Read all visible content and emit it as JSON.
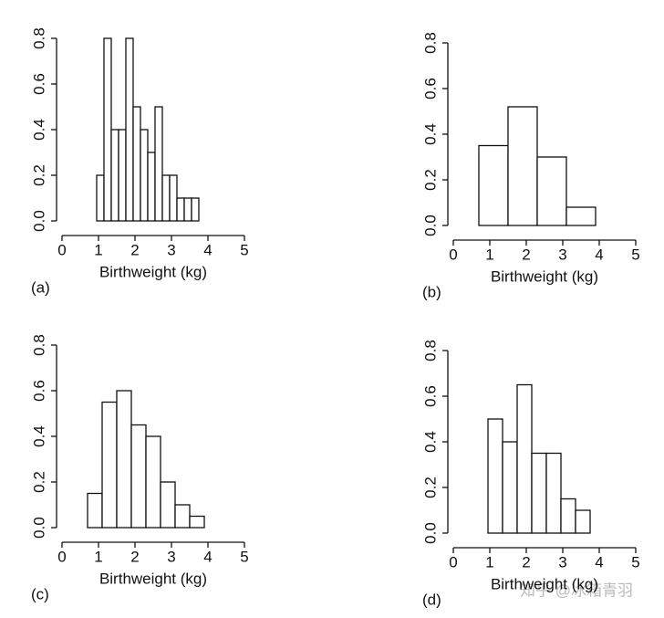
{
  "chart_data": [
    {
      "type": "histogram",
      "label": "(a)",
      "xlabel": "Birthweight (kg)",
      "bins": [
        0.95,
        1.15,
        1.35,
        1.55,
        1.75,
        1.95,
        2.15,
        2.35,
        2.55,
        2.75,
        2.95,
        3.15,
        3.35,
        3.55,
        3.75
      ],
      "values": [
        0.2,
        0.8,
        0.4,
        0.4,
        0.8,
        0.5,
        0.4,
        0.3,
        0.5,
        0.2,
        0.2,
        0.1,
        0.1,
        0.1
      ],
      "color": "#ffffff",
      "xlim": [
        0,
        5
      ],
      "xticks": [
        0,
        1,
        2,
        3,
        4,
        5
      ],
      "ylim": [
        0,
        0.8
      ],
      "yticks": [
        {
          "value": 0,
          "label": "0.0"
        },
        0.2,
        0.4,
        0.6,
        0.8
      ]
    },
    {
      "type": "histogram",
      "label": "(b)",
      "xlabel": "Birthweight (kg)",
      "bins": [
        0.7,
        1.5,
        2.3,
        3.1,
        3.9
      ],
      "values": [
        0.35,
        0.52,
        0.3,
        0.08
      ],
      "color": "#ffffff",
      "xlim": [
        0,
        5
      ],
      "xticks": [
        0,
        1,
        2,
        3,
        4,
        5
      ],
      "ylim": [
        0,
        0.8
      ],
      "yticks": [
        {
          "value": 0,
          "label": "0.0"
        },
        0.2,
        0.4,
        0.6,
        0.8
      ]
    },
    {
      "type": "histogram",
      "label": "(c)",
      "xlabel": "Birthweight (kg)",
      "bins": [
        0.7,
        1.1,
        1.5,
        1.9,
        2.3,
        2.7,
        3.1,
        3.5,
        3.9
      ],
      "values": [
        0.15,
        0.55,
        0.6,
        0.45,
        0.4,
        0.2,
        0.1,
        0.05
      ],
      "color": "#ffffff",
      "xlim": [
        0,
        5
      ],
      "xticks": [
        0,
        1,
        2,
        3,
        4,
        5
      ],
      "ylim": [
        0,
        0.8
      ],
      "yticks": [
        {
          "value": 0,
          "label": "0.0"
        },
        0.2,
        0.4,
        0.6,
        0.8
      ]
    },
    {
      "type": "histogram",
      "label": "(d)",
      "xlabel": "Birthweight (kg)",
      "bins": [
        0.95,
        1.35,
        1.75,
        2.15,
        2.55,
        2.95,
        3.35,
        3.75
      ],
      "values": [
        0.5,
        0.4,
        0.65,
        0.35,
        0.35,
        0.15,
        0.1
      ],
      "color": "#ffffff",
      "xlim": [
        0,
        5
      ],
      "xticks": [
        0,
        1,
        2,
        3,
        4,
        5
      ],
      "ylim": [
        0,
        0.8
      ],
      "yticks": [
        {
          "value": 0,
          "label": "0.0"
        },
        0.2,
        0.4,
        0.6,
        0.8
      ]
    }
  ],
  "watermark": "知乎 @冰箱青羽"
}
